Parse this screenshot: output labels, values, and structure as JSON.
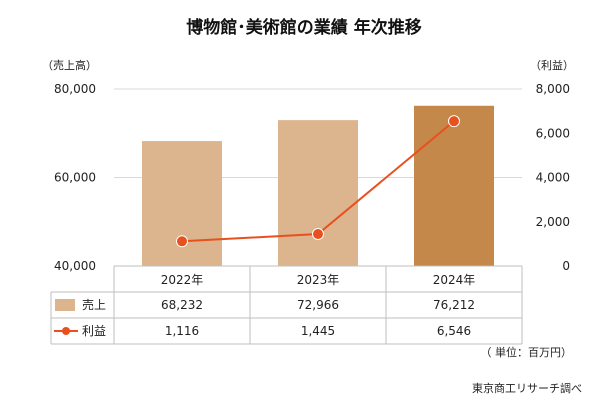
{
  "chart_data": {
    "type": "bar",
    "title": "博物館･美術館の業績 年次推移",
    "y_left_label": "（売上高）",
    "y_right_label": "（利益）",
    "y_left_ticks": [
      "80,000",
      "60,000",
      "40,000"
    ],
    "y_right_ticks": [
      "8,000",
      "6,000",
      "4,000",
      "2,000",
      "0"
    ],
    "y_left_range": [
      40000,
      80000
    ],
    "y_right_range": [
      0,
      8000
    ],
    "categories": [
      "2022年",
      "2023年",
      "2024年"
    ],
    "series": [
      {
        "name": "売上",
        "type": "bar",
        "axis": "left",
        "values": [
          68232,
          72966,
          76212
        ],
        "colors": [
          "#dcb48e",
          "#dcb48e",
          "#c4894a"
        ]
      },
      {
        "name": "利益",
        "type": "line",
        "axis": "right",
        "values": [
          1116,
          1445,
          6546
        ],
        "color": "#e8501e"
      }
    ],
    "table_rows": [
      {
        "name": "売上",
        "values": [
          "68,232",
          "72,966",
          "76,212"
        ]
      },
      {
        "name": "利益",
        "values": [
          "1,116",
          "1,445",
          "6,546"
        ]
      }
    ],
    "unit_note": "（ 単位：百万円）",
    "source": "東京商工リサーチ調べ"
  }
}
